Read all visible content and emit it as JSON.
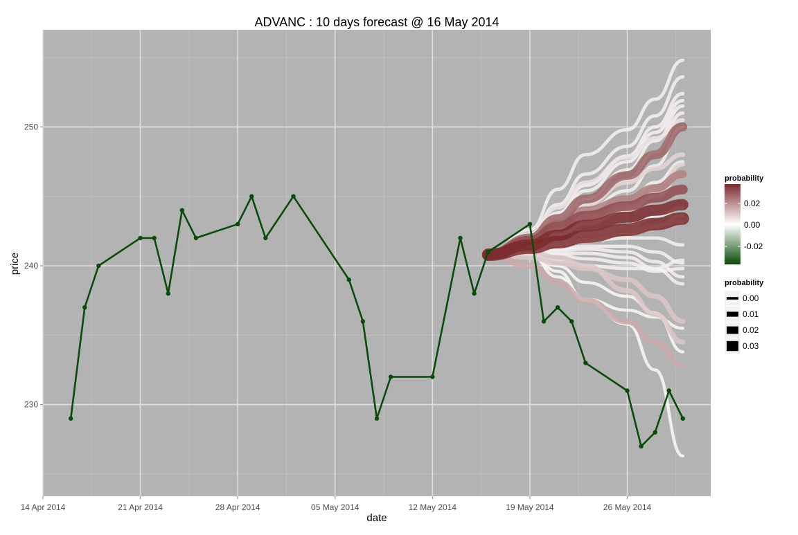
{
  "chart_data": {
    "type": "line",
    "title": "ADVANC :  10  days forecast @  16 May 2014",
    "xlabel": "date",
    "ylabel": "price",
    "xlim": [
      "2014-04-14",
      "2014-06-01"
    ],
    "ylim": [
      223.4,
      257
    ],
    "x_ticks": [
      {
        "date": "2014-04-14",
        "label": "14 Apr 2014"
      },
      {
        "date": "2014-04-21",
        "label": "21 Apr 2014"
      },
      {
        "date": "2014-04-28",
        "label": "28 Apr 2014"
      },
      {
        "date": "2014-05-05",
        "label": "05 May 2014"
      },
      {
        "date": "2014-05-12",
        "label": "12 May 2014"
      },
      {
        "date": "2014-05-19",
        "label": "19 May 2014"
      },
      {
        "date": "2014-05-26",
        "label": "26 May 2014"
      }
    ],
    "y_ticks": [
      230,
      240,
      250
    ],
    "grid": true,
    "background": "#b3b3b3",
    "actual": {
      "color": "#0a4a0a",
      "points": [
        {
          "x": "2014-04-16",
          "y": 229
        },
        {
          "x": "2014-04-17",
          "y": 237
        },
        {
          "x": "2014-04-18",
          "y": 240
        },
        {
          "x": "2014-04-21",
          "y": 242
        },
        {
          "x": "2014-04-22",
          "y": 242
        },
        {
          "x": "2014-04-23",
          "y": 238
        },
        {
          "x": "2014-04-24",
          "y": 244
        },
        {
          "x": "2014-04-25",
          "y": 242
        },
        {
          "x": "2014-04-28",
          "y": 243
        },
        {
          "x": "2014-04-29",
          "y": 245
        },
        {
          "x": "2014-04-30",
          "y": 242
        },
        {
          "x": "2014-05-02",
          "y": 245
        },
        {
          "x": "2014-05-06",
          "y": 239
        },
        {
          "x": "2014-05-07",
          "y": 236
        },
        {
          "x": "2014-05-08",
          "y": 229
        },
        {
          "x": "2014-05-09",
          "y": 232
        },
        {
          "x": "2014-05-12",
          "y": 232
        },
        {
          "x": "2014-05-14",
          "y": 242
        },
        {
          "x": "2014-05-15",
          "y": 238
        },
        {
          "x": "2014-05-16",
          "y": 241
        },
        {
          "x": "2014-05-19",
          "y": 243
        },
        {
          "x": "2014-05-20",
          "y": 236
        },
        {
          "x": "2014-05-21",
          "y": 237
        },
        {
          "x": "2014-05-22",
          "y": 236
        },
        {
          "x": "2014-05-23",
          "y": 233
        },
        {
          "x": "2014-05-26",
          "y": 231
        },
        {
          "x": "2014-05-27",
          "y": 227
        },
        {
          "x": "2014-05-28",
          "y": 228
        },
        {
          "x": "2014-05-29",
          "y": 231
        },
        {
          "x": "2014-05-30",
          "y": 229
        }
      ]
    },
    "forecast": {
      "start": {
        "x": "2014-05-16",
        "y": 240.8
      },
      "x": [
        "2014-05-19",
        "2014-05-21",
        "2014-05-23",
        "2014-05-26",
        "2014-05-28",
        "2014-05-30"
      ],
      "paths": [
        {
          "probability": 0.035,
          "y": [
            241.3,
            241.7,
            242.1,
            242.6,
            243.0,
            243.4
          ]
        },
        {
          "probability": 0.03,
          "y": [
            241.5,
            242.2,
            242.9,
            243.5,
            244.0,
            244.4
          ]
        },
        {
          "probability": 0.025,
          "y": [
            241.8,
            242.8,
            243.6,
            244.3,
            244.9,
            245.5
          ]
        },
        {
          "probability": 0.022,
          "y": [
            242.0,
            243.4,
            244.8,
            246.5,
            248.0,
            250.0
          ]
        },
        {
          "probability": 0.018,
          "y": [
            241.9,
            243.0,
            244.0,
            244.8,
            245.6,
            246.6
          ]
        },
        {
          "probability": 0.012,
          "y": [
            241.7,
            242.6,
            243.5,
            244.5,
            245.5,
            246.5
          ]
        },
        {
          "probability": 0.012,
          "y": [
            240.0,
            238.8,
            237.5,
            236.0,
            234.5,
            232.8
          ]
        },
        {
          "probability": 0.008,
          "y": [
            240.6,
            240.2,
            239.8,
            239.0,
            237.8,
            236.0
          ]
        },
        {
          "probability": 0.008,
          "y": [
            241.0,
            240.6,
            240.0,
            238.2,
            236.5,
            234.5
          ]
        },
        {
          "probability": 0.006,
          "y": [
            241.6,
            242.5,
            243.3,
            244.3,
            245.4,
            247.3
          ]
        },
        {
          "probability": 0.006,
          "y": [
            241.8,
            243.0,
            244.4,
            246.0,
            247.0,
            248.0
          ]
        },
        {
          "probability": 0.004,
          "y": [
            242.2,
            244.2,
            246.0,
            247.8,
            249.2,
            250.5
          ]
        },
        {
          "probability": 0.004,
          "y": [
            241.2,
            241.8,
            242.2,
            242.6,
            242.9,
            243.2
          ]
        },
        {
          "probability": 0.002,
          "y": [
            242.6,
            245.5,
            248.0,
            249.8,
            252.0,
            254.8
          ]
        },
        {
          "probability": 0.002,
          "y": [
            242.3,
            244.4,
            246.6,
            248.6,
            250.8,
            253.6
          ]
        },
        {
          "probability": 0.002,
          "y": [
            242.0,
            243.8,
            245.8,
            247.9,
            250.0,
            252.4
          ]
        },
        {
          "probability": 0.002,
          "y": [
            241.9,
            243.5,
            245.4,
            247.5,
            249.6,
            251.9
          ]
        },
        {
          "probability": 0.002,
          "y": [
            241.8,
            243.2,
            244.8,
            246.9,
            249.0,
            251.5
          ]
        },
        {
          "probability": 0.002,
          "y": [
            241.7,
            243.0,
            244.4,
            246.2,
            248.2,
            251.0
          ]
        },
        {
          "probability": 0.002,
          "y": [
            241.6,
            242.8,
            244.0,
            245.4,
            247.2,
            250.0
          ]
        },
        {
          "probability": 0.002,
          "y": [
            241.5,
            242.4,
            243.4,
            244.4,
            246.0,
            247.5
          ]
        },
        {
          "probability": 0.002,
          "y": [
            241.4,
            242.2,
            243.0,
            244.0,
            245.0,
            246.5
          ]
        },
        {
          "probability": 0.002,
          "y": [
            241.3,
            241.8,
            242.3,
            242.8,
            243.5,
            244.2
          ]
        },
        {
          "probability": 0.002,
          "y": [
            241.2,
            241.6,
            241.9,
            242.3,
            242.8,
            243.6
          ]
        },
        {
          "probability": 0.002,
          "y": [
            241.1,
            241.5,
            241.8,
            242.0,
            242.0,
            241.5
          ]
        },
        {
          "probability": 0.002,
          "y": [
            241.0,
            241.2,
            241.4,
            241.4,
            241.0,
            240.2
          ]
        },
        {
          "probability": 0.002,
          "y": [
            241.0,
            241.1,
            241.2,
            241.0,
            240.3,
            239.2
          ]
        },
        {
          "probability": 0.002,
          "y": [
            240.9,
            240.9,
            240.9,
            240.6,
            239.8,
            238.7
          ]
        },
        {
          "probability": 0.002,
          "y": [
            240.9,
            240.8,
            240.5,
            240.2,
            239.6,
            239.8
          ]
        },
        {
          "probability": 0.002,
          "y": [
            240.8,
            240.4,
            240.0,
            239.8,
            239.8,
            240.4
          ]
        },
        {
          "probability": 0.001,
          "y": [
            240.9,
            239.6,
            237.5,
            235.8,
            232.5,
            226.3
          ]
        },
        {
          "probability": 0.001,
          "y": [
            240.8,
            239.2,
            237.6,
            236.8,
            236.3,
            235.5
          ]
        },
        {
          "probability": 0.001,
          "y": [
            240.9,
            240.0,
            238.8,
            237.8,
            236.6,
            233.8
          ]
        }
      ]
    },
    "legends": [
      {
        "kind": "colorbar",
        "title": "probability",
        "position": "right",
        "colors": [
          "#7b2b2e",
          "#ffffff",
          "#0a4a0a"
        ],
        "labels": [
          "0.02",
          "0.00",
          "-0.02"
        ]
      },
      {
        "kind": "size",
        "title": "probability",
        "position": "right",
        "labels": [
          "0.00",
          "0.01",
          "0.02",
          "0.03"
        ],
        "values": [
          0.0,
          0.01,
          0.02,
          0.03
        ]
      }
    ]
  }
}
